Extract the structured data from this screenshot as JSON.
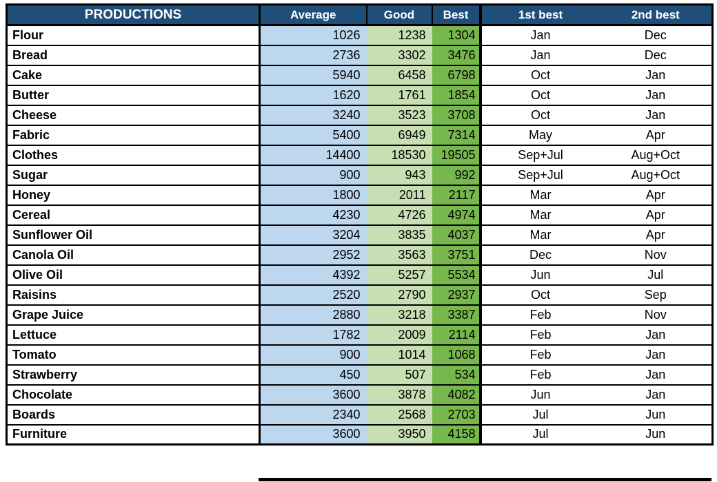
{
  "colors": {
    "header_bg": "#1F4F78",
    "average_bg": "#BDD7EE",
    "good_bg": "#C8DFB3",
    "best_bg": "#77B84D",
    "header_text": "#FFFFFF",
    "border_color": "#000000",
    "body_text": "#000000"
  },
  "chart_data": {
    "type": "table",
    "title": "PRODUCTIONS",
    "columns": [
      "PRODUCTIONS",
      "Average",
      "Good",
      "Best",
      "1st best",
      "2nd best"
    ],
    "rows": [
      {
        "name": "Flour",
        "average": 1026,
        "good": 1238,
        "best": 1304,
        "first_best": "Jan",
        "second_best": "Dec"
      },
      {
        "name": "Bread",
        "average": 2736,
        "good": 3302,
        "best": 3476,
        "first_best": "Jan",
        "second_best": "Dec"
      },
      {
        "name": "Cake",
        "average": 5940,
        "good": 6458,
        "best": 6798,
        "first_best": "Oct",
        "second_best": "Jan"
      },
      {
        "name": "Butter",
        "average": 1620,
        "good": 1761,
        "best": 1854,
        "first_best": "Oct",
        "second_best": "Jan"
      },
      {
        "name": "Cheese",
        "average": 3240,
        "good": 3523,
        "best": 3708,
        "first_best": "Oct",
        "second_best": "Jan"
      },
      {
        "name": "Fabric",
        "average": 5400,
        "good": 6949,
        "best": 7314,
        "first_best": "May",
        "second_best": "Apr"
      },
      {
        "name": "Clothes",
        "average": 14400,
        "good": 18530,
        "best": 19505,
        "first_best": "Sep+Jul",
        "second_best": "Aug+Oct"
      },
      {
        "name": "Sugar",
        "average": 900,
        "good": 943,
        "best": 992,
        "first_best": "Sep+Jul",
        "second_best": "Aug+Oct"
      },
      {
        "name": "Honey",
        "average": 1800,
        "good": 2011,
        "best": 2117,
        "first_best": "Mar",
        "second_best": "Apr"
      },
      {
        "name": "Cereal",
        "average": 4230,
        "good": 4726,
        "best": 4974,
        "first_best": "Mar",
        "second_best": "Apr"
      },
      {
        "name": "Sunflower Oil",
        "average": 3204,
        "good": 3835,
        "best": 4037,
        "first_best": "Mar",
        "second_best": "Apr"
      },
      {
        "name": "Canola Oil",
        "average": 2952,
        "good": 3563,
        "best": 3751,
        "first_best": "Dec",
        "second_best": "Nov"
      },
      {
        "name": "Olive Oil",
        "average": 4392,
        "good": 5257,
        "best": 5534,
        "first_best": "Jun",
        "second_best": "Jul"
      },
      {
        "name": "Raisins",
        "average": 2520,
        "good": 2790,
        "best": 2937,
        "first_best": "Oct",
        "second_best": "Sep"
      },
      {
        "name": "Grape Juice",
        "average": 2880,
        "good": 3218,
        "best": 3387,
        "first_best": "Feb",
        "second_best": "Nov"
      },
      {
        "name": "Lettuce",
        "average": 1782,
        "good": 2009,
        "best": 2114,
        "first_best": "Feb",
        "second_best": "Jan"
      },
      {
        "name": "Tomato",
        "average": 900,
        "good": 1014,
        "best": 1068,
        "first_best": "Feb",
        "second_best": "Jan"
      },
      {
        "name": "Strawberry",
        "average": 450,
        "good": 507,
        "best": 534,
        "first_best": "Feb",
        "second_best": "Jan"
      },
      {
        "name": "Chocolate",
        "average": 3600,
        "good": 3878,
        "best": 4082,
        "first_best": "Jun",
        "second_best": "Jan"
      },
      {
        "name": "Boards",
        "average": 2340,
        "good": 2568,
        "best": 2703,
        "first_best": "Jul",
        "second_best": "Jun"
      },
      {
        "name": "Furniture",
        "average": 3600,
        "good": 3950,
        "best": 4158,
        "first_best": "Jul",
        "second_best": "Jun"
      }
    ]
  }
}
